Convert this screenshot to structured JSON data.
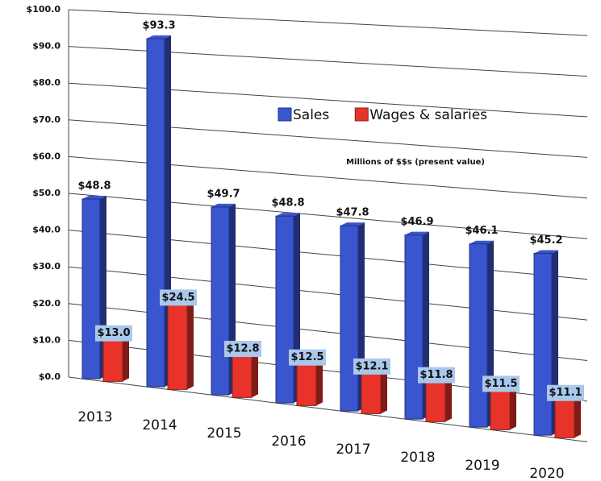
{
  "chart_data": {
    "type": "bar3d",
    "annotation": "Millions of $$s (present value)",
    "categories": [
      "2013",
      "2014",
      "2015",
      "2016",
      "2017",
      "2018",
      "2019",
      "2020"
    ],
    "series": [
      {
        "name": "Sales",
        "color": "#3a55d0",
        "values": [
          48.8,
          93.3,
          49.7,
          48.8,
          47.8,
          46.9,
          46.1,
          45.2
        ],
        "value_labels": [
          "$48.8",
          "$93.3",
          "$49.7",
          "$48.8",
          "$47.8",
          "$46.9",
          "$46.1",
          "$45.2"
        ]
      },
      {
        "name": "Wages & salaries",
        "color": "#e8332a",
        "values": [
          13.0,
          24.5,
          12.8,
          12.5,
          12.1,
          11.8,
          11.5,
          11.1
        ],
        "value_labels": [
          "$13.0",
          "$24.5",
          "$12.8",
          "$12.5",
          "$12.1",
          "$11.8",
          "$11.5",
          "$11.1"
        ]
      }
    ],
    "ylim": [
      0,
      100
    ],
    "yticks": [
      {
        "value": 0,
        "label": "$0.0"
      },
      {
        "value": 10,
        "label": "$10.0"
      },
      {
        "value": 20,
        "label": "$20.0"
      },
      {
        "value": 30,
        "label": "$30.0"
      },
      {
        "value": 40,
        "label": "$40.0"
      },
      {
        "value": 50,
        "label": "$50.0"
      },
      {
        "value": 60,
        "label": "$60.0"
      },
      {
        "value": 70,
        "label": "$70.0"
      },
      {
        "value": 80,
        "label": "$80.0"
      },
      {
        "value": 90,
        "label": "$90.0"
      },
      {
        "value": 100,
        "label": "$100.0"
      }
    ],
    "grid": true,
    "legend": "center"
  }
}
